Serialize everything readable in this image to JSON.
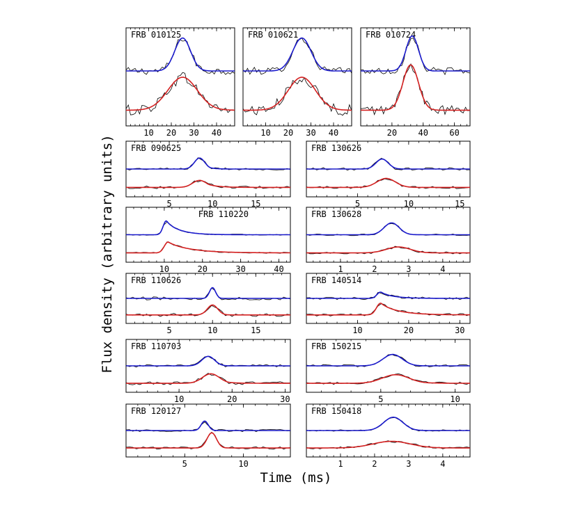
{
  "chart_data": {
    "type": "line",
    "xlabel": "Time (ms)",
    "ylabel": "Flux density (arbitrary units)",
    "colors": {
      "upper_fit": "#1a1acc",
      "lower_fit": "#d42020",
      "data": "#000000"
    },
    "grid": false,
    "legend": "none",
    "panels": [
      {
        "name": "FRB 010125",
        "xlim": [
          0,
          48
        ],
        "xticks": [
          10,
          20,
          30,
          40
        ],
        "name_position": "top-left",
        "series": [
          {
            "role": "upper",
            "peak_x": 25,
            "width": 3.5,
            "amp": 0.8,
            "base": 0.0,
            "tau": 0,
            "noise": 0.08
          },
          {
            "role": "lower",
            "peak_x": 25,
            "width": 6.5,
            "amp": 0.8,
            "base": 0.0,
            "tau": 0,
            "noise": 0.12
          }
        ]
      },
      {
        "name": "FRB 010621",
        "xlim": [
          0,
          48
        ],
        "xticks": [
          10,
          20,
          30,
          40
        ],
        "name_position": "top-left",
        "series": [
          {
            "role": "upper",
            "peak_x": 26,
            "width": 4.0,
            "amp": 0.8,
            "base": 0.0,
            "tau": 0,
            "noise": 0.08
          },
          {
            "role": "lower",
            "peak_x": 26,
            "width": 6.0,
            "amp": 0.8,
            "base": 0.0,
            "tau": 0,
            "noise": 0.12
          }
        ]
      },
      {
        "name": "FRB 010724",
        "xlim": [
          0,
          70
        ],
        "xticks": [
          20,
          40,
          60
        ],
        "name_position": "top-left",
        "series": [
          {
            "role": "upper",
            "peak_x": 33,
            "width": 4.0,
            "amp": 0.85,
            "base": 0.0,
            "tau": 0,
            "noise": 0.08
          },
          {
            "role": "lower",
            "peak_x": 32,
            "width": 5.0,
            "amp": 1.1,
            "base": 0.0,
            "tau": 0,
            "noise": 0.1
          }
        ]
      },
      {
        "name": "FRB 090625",
        "xlim": [
          0,
          19
        ],
        "xticks": [
          5,
          10,
          15
        ],
        "name_position": "top-left",
        "series": [
          {
            "role": "upper",
            "peak_x": 8.5,
            "width": 0.6,
            "amp": 0.55,
            "base": 0.0,
            "tau": 0.6,
            "noise": 0.05
          },
          {
            "role": "lower",
            "peak_x": 8.5,
            "width": 0.8,
            "amp": 0.35,
            "base": 0.0,
            "tau": 1.2,
            "noise": 0.06
          }
        ]
      },
      {
        "name": "FRB 130626",
        "xlim": [
          0,
          16
        ],
        "xticks": [
          5,
          10,
          15
        ],
        "name_position": "top-left",
        "series": [
          {
            "role": "upper",
            "peak_x": 7.4,
            "width": 0.6,
            "amp": 0.5,
            "base": 0.0,
            "tau": 0.3,
            "noise": 0.06
          },
          {
            "role": "lower",
            "peak_x": 7.8,
            "width": 0.9,
            "amp": 0.45,
            "base": 0.0,
            "tau": 0.4,
            "noise": 0.06
          }
        ]
      },
      {
        "name": "FRB 110220",
        "xlim": [
          0,
          43
        ],
        "xticks": [
          10,
          20,
          30,
          40
        ],
        "name_position": "top-right",
        "series": [
          {
            "role": "upper",
            "peak_x": 10.5,
            "width": 0.8,
            "amp": 0.7,
            "base": 0.0,
            "tau": 3.5,
            "noise": 0.03
          },
          {
            "role": "lower",
            "peak_x": 11.0,
            "width": 1.0,
            "amp": 0.55,
            "base": 0.0,
            "tau": 6.0,
            "noise": 0.03
          }
        ]
      },
      {
        "name": "FRB 130628",
        "xlim": [
          0,
          4.8
        ],
        "xticks": [
          1,
          2,
          3,
          4
        ],
        "name_position": "top-left",
        "series": [
          {
            "role": "upper",
            "peak_x": 2.5,
            "width": 0.22,
            "amp": 0.6,
            "base": 0.0,
            "tau": 0.15,
            "noise": 0.04
          },
          {
            "role": "lower",
            "peak_x": 2.7,
            "width": 0.35,
            "amp": 0.3,
            "base": 0.0,
            "tau": 0.2,
            "noise": 0.05
          }
        ]
      },
      {
        "name": "FRB 110626",
        "xlim": [
          0,
          19
        ],
        "xticks": [
          5,
          10,
          15
        ],
        "name_position": "top-left",
        "series": [
          {
            "role": "upper",
            "peak_x": 10.0,
            "width": 0.35,
            "amp": 0.6,
            "base": 0.0,
            "tau": 0,
            "noise": 0.08
          },
          {
            "role": "lower",
            "peak_x": 10.0,
            "width": 0.6,
            "amp": 0.55,
            "base": 0.0,
            "tau": 0.2,
            "noise": 0.08
          }
        ]
      },
      {
        "name": "FRB 140514",
        "xlim": [
          0,
          32
        ],
        "xticks": [
          10,
          20,
          30
        ],
        "name_position": "top-left",
        "series": [
          {
            "role": "upper",
            "peak_x": 14.5,
            "width": 0.7,
            "amp": 0.35,
            "base": 0.0,
            "tau": 2.5,
            "noise": 0.06
          },
          {
            "role": "lower",
            "peak_x": 14.5,
            "width": 0.8,
            "amp": 0.65,
            "base": 0.0,
            "tau": 3.5,
            "noise": 0.06
          }
        ]
      },
      {
        "name": "FRB 110703",
        "xlim": [
          0,
          31
        ],
        "xticks": [
          10,
          20,
          30
        ],
        "name_position": "top-left",
        "series": [
          {
            "role": "upper",
            "peak_x": 15.5,
            "width": 1.2,
            "amp": 0.5,
            "base": 0.0,
            "tau": 0.8,
            "noise": 0.06
          },
          {
            "role": "lower",
            "peak_x": 16.0,
            "width": 1.6,
            "amp": 0.5,
            "base": 0.0,
            "tau": 1.5,
            "noise": 0.08
          }
        ]
      },
      {
        "name": "FRB 150215",
        "xlim": [
          0,
          11
        ],
        "xticks": [
          5,
          10
        ],
        "name_position": "top-left",
        "series": [
          {
            "role": "upper",
            "peak_x": 5.8,
            "width": 0.65,
            "amp": 0.6,
            "base": 0.0,
            "tau": 0.3,
            "noise": 0.06
          },
          {
            "role": "lower",
            "peak_x": 6.0,
            "width": 0.9,
            "amp": 0.45,
            "base": 0.0,
            "tau": 0.8,
            "noise": 0.06
          }
        ]
      },
      {
        "name": "FRB 120127",
        "xlim": [
          0,
          14
        ],
        "xticks": [
          5,
          10
        ],
        "name_position": "top-left",
        "series": [
          {
            "role": "upper",
            "peak_x": 6.7,
            "width": 0.3,
            "amp": 0.5,
            "base": 0.0,
            "tau": 0.15,
            "noise": 0.06
          },
          {
            "role": "lower",
            "peak_x": 7.3,
            "width": 0.4,
            "amp": 0.8,
            "base": 0.0,
            "tau": 0.15,
            "noise": 0.06
          }
        ]
      },
      {
        "name": "FRB 150418",
        "xlim": [
          0,
          4.8
        ],
        "xticks": [
          1,
          2,
          3,
          4
        ],
        "name_position": "top-left",
        "series": [
          {
            "role": "upper",
            "peak_x": 2.55,
            "width": 0.28,
            "amp": 0.7,
            "base": 0.0,
            "tau": 0.12,
            "noise": 0.04
          },
          {
            "role": "lower",
            "peak_x": 2.5,
            "width": 0.55,
            "amp": 0.35,
            "base": 0.0,
            "tau": 0.2,
            "noise": 0.05
          }
        ]
      }
    ]
  }
}
